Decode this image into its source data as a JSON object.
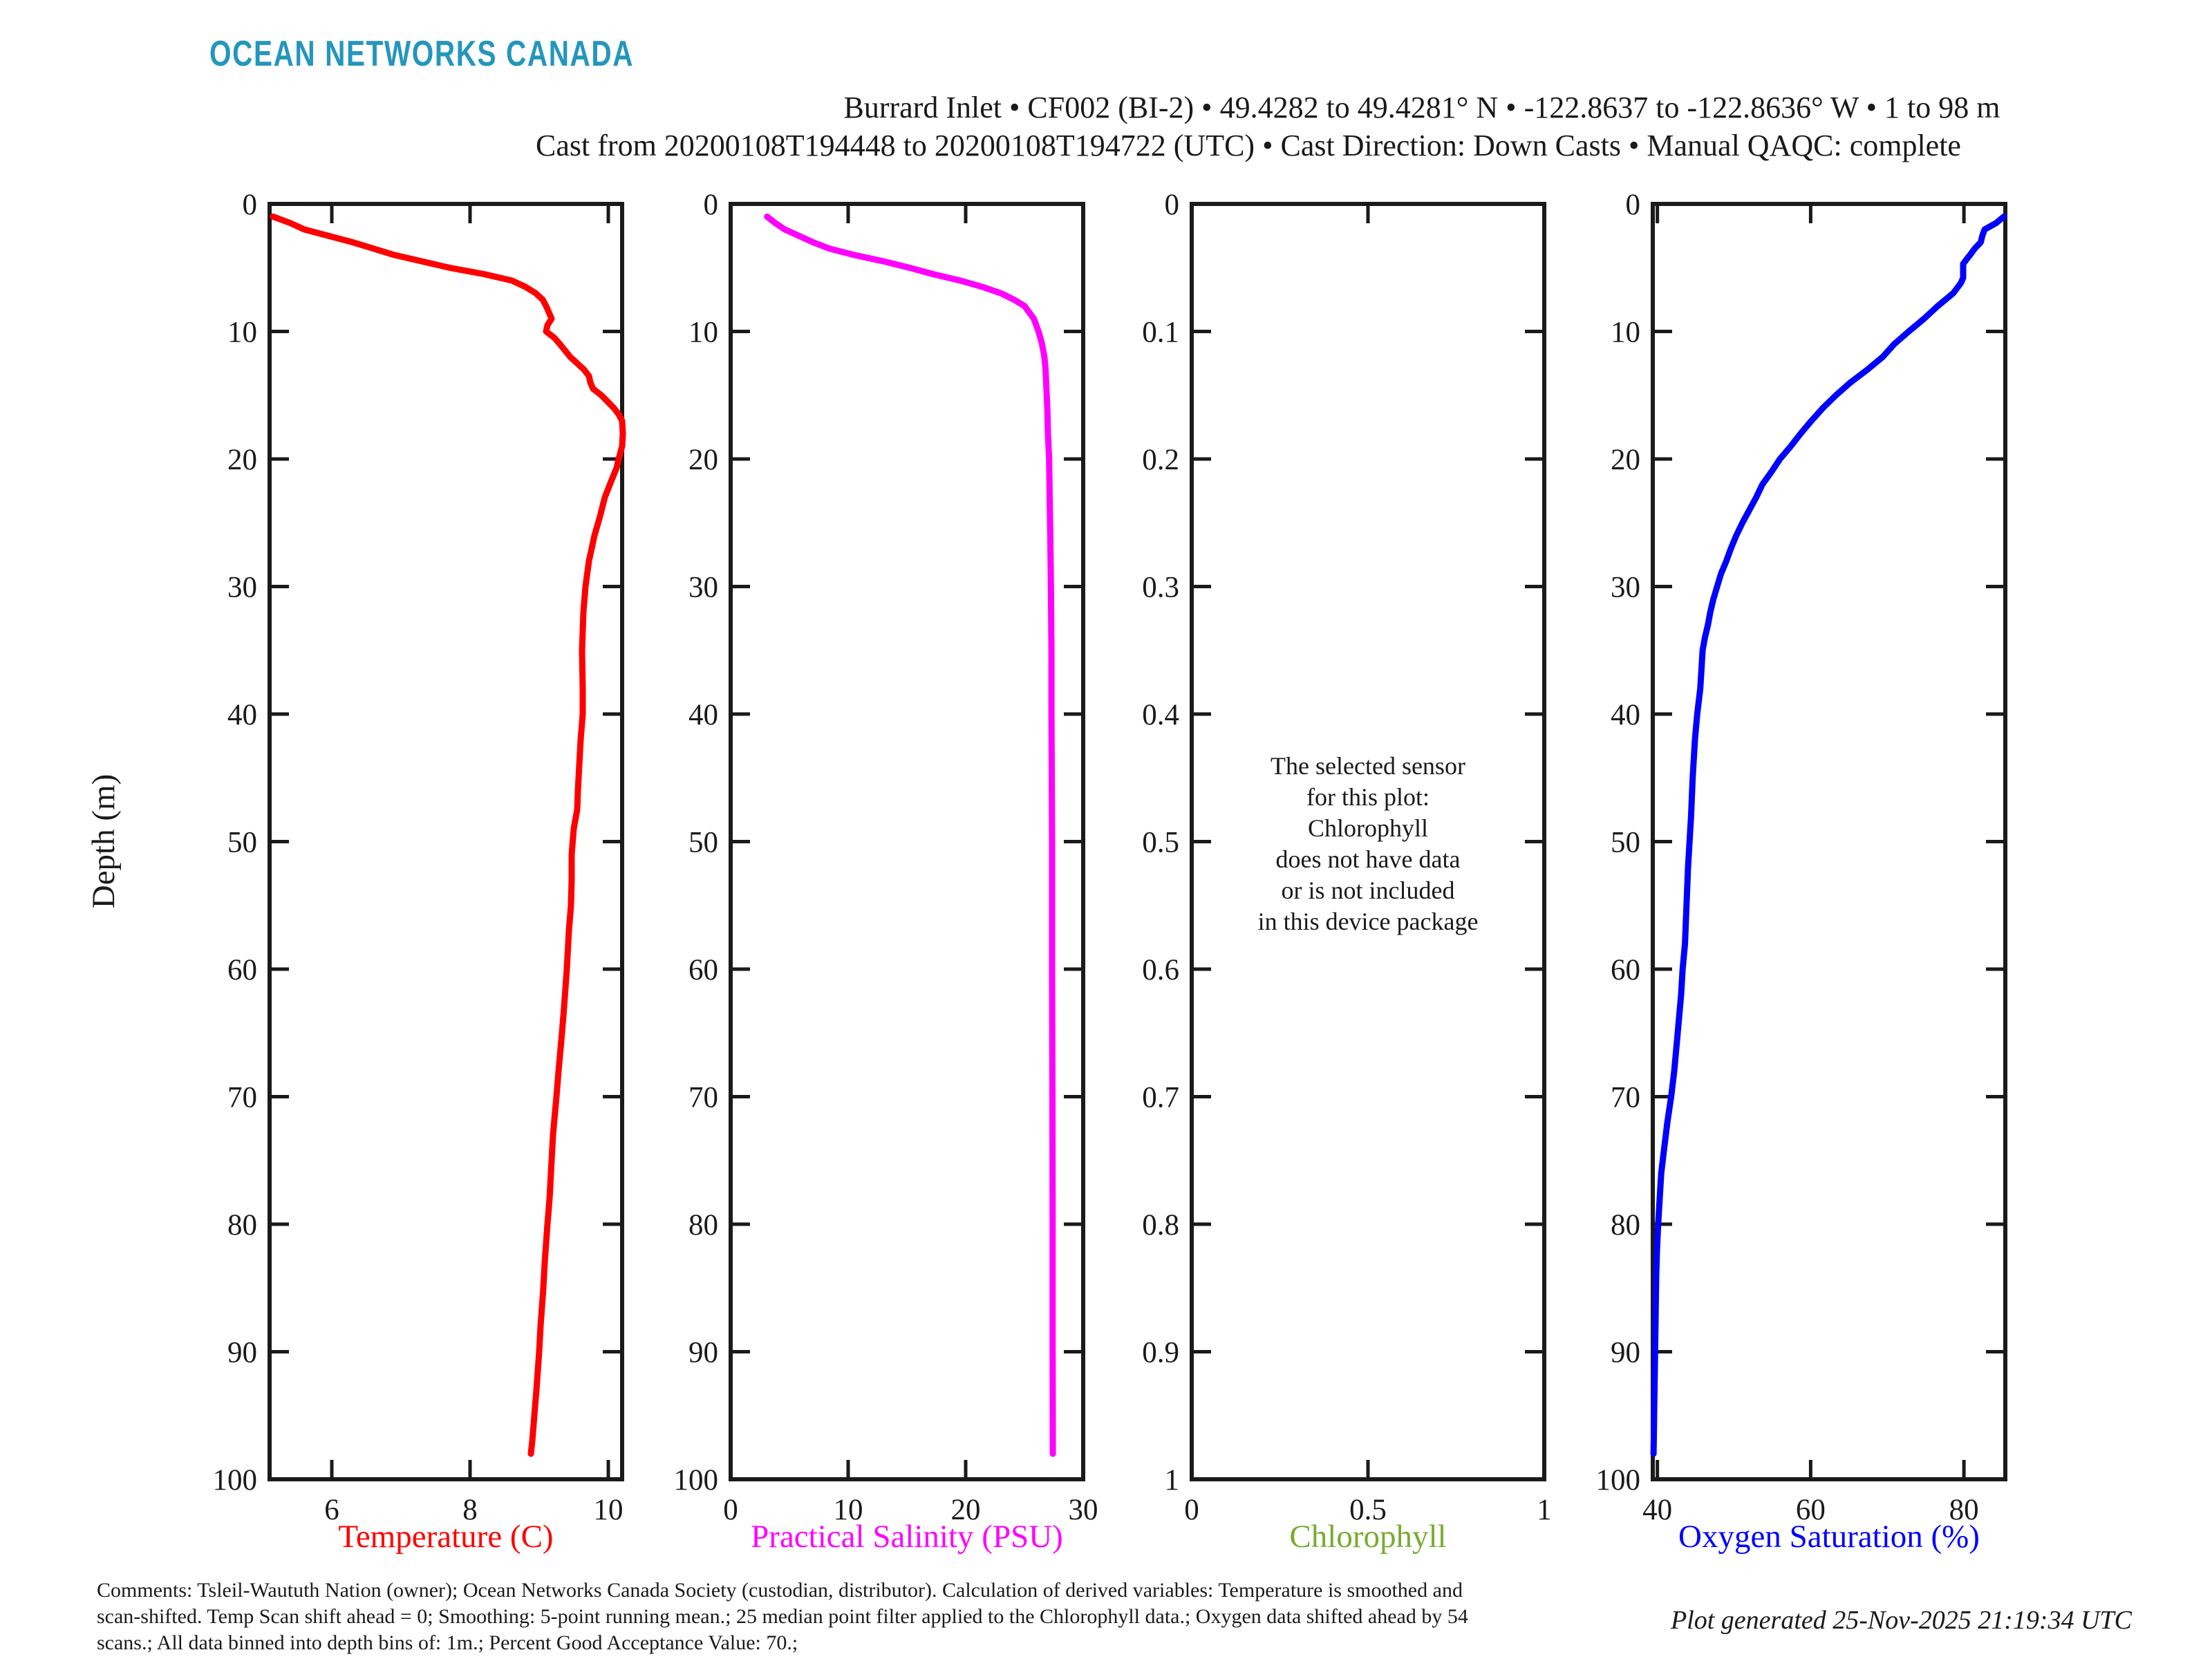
{
  "logo_text": "OCEAN NETWORKS CANADA",
  "title": {
    "line1": "Burrard Inlet • CF002 (BI-2) • 49.4282 to 49.4281° N • -122.8637 to -122.8636° W • 1 to 98 m",
    "line2": "Cast from 20200108T194448 to 20200108T194722 (UTC) • Cast Direction: Down Casts • Manual QAQC: complete"
  },
  "depth_axis_label": "Depth (m)",
  "footer": {
    "comments": [
      "Comments: Tsleil-Waututh Nation (owner); Ocean Networks Canada Society (custodian, distributor). Calculation of derived variables: Temperature is smoothed and",
      "scan-shifted. Temp Scan shift ahead = 0; Smoothing: 5-point running mean.; 25 median point filter applied to the Chlorophyll data.; Oxygen data shifted ahead by 54",
      "scans.; All data binned into depth bins of: 1m.; Percent Good Acceptance Value: 70.;"
    ],
    "generated": "Plot generated 25-Nov-2025 21:19:34 UTC"
  },
  "colors": {
    "logo": "#2496bd",
    "axis": "#1a1a1a",
    "temperature": "#ff0000",
    "salinity": "#ff00ff",
    "chlorophyll": "#77ac30",
    "oxygen": "#0000ff"
  },
  "chart_data": [
    {
      "name": "temperature",
      "type": "line",
      "xlabel": "Temperature (C)",
      "ylabel": "Depth (m)",
      "color_key": "temperature",
      "xlim": [
        5.1,
        10.2
      ],
      "xticks": [
        [
          6,
          "6"
        ],
        [
          8,
          "8"
        ],
        [
          10,
          "10"
        ]
      ],
      "ylim": [
        0,
        100
      ],
      "yticks": [
        [
          0,
          "0"
        ],
        [
          10,
          "10"
        ],
        [
          20,
          "20"
        ],
        [
          30,
          "30"
        ],
        [
          40,
          "40"
        ],
        [
          50,
          "50"
        ],
        [
          60,
          "60"
        ],
        [
          70,
          "70"
        ],
        [
          80,
          "80"
        ],
        [
          90,
          "90"
        ],
        [
          100,
          "100"
        ]
      ],
      "depth": [
        1,
        1.5,
        2,
        2.5,
        3,
        3.5,
        4,
        4.5,
        5,
        5.5,
        6,
        6.5,
        7,
        7.5,
        8,
        9,
        9.5,
        10,
        10.5,
        11,
        12,
        13,
        13.5,
        14,
        14.5,
        15,
        16,
        16.5,
        17,
        18,
        19,
        20,
        20.7,
        21.9,
        23,
        24.5,
        26,
        28,
        30,
        32,
        35,
        38,
        40,
        42,
        44,
        46,
        47.5,
        49,
        51,
        53,
        55,
        57,
        60,
        63,
        65,
        68,
        70,
        73,
        75,
        78,
        80,
        83,
        85,
        88,
        90,
        93,
        95,
        97,
        98
      ],
      "values": [
        5.15,
        5.4,
        5.6,
        5.95,
        6.3,
        6.6,
        6.9,
        7.3,
        7.7,
        8.2,
        8.6,
        8.8,
        8.95,
        9.05,
        9.1,
        9.18,
        9.12,
        9.1,
        9.22,
        9.3,
        9.45,
        9.65,
        9.72,
        9.74,
        9.78,
        9.9,
        10.08,
        10.15,
        10.2,
        10.21,
        10.2,
        10.15,
        10.12,
        10.03,
        9.95,
        9.88,
        9.8,
        9.72,
        9.67,
        9.64,
        9.62,
        9.63,
        9.63,
        9.6,
        9.58,
        9.56,
        9.55,
        9.5,
        9.47,
        9.47,
        9.46,
        9.43,
        9.4,
        9.36,
        9.33,
        9.28,
        9.25,
        9.2,
        9.18,
        9.15,
        9.12,
        9.08,
        9.06,
        9.02,
        9.0,
        8.96,
        8.93,
        8.9,
        8.88
      ]
    },
    {
      "name": "salinity",
      "type": "line",
      "xlabel": "Practical Salinity (PSU)",
      "ylabel": "Depth (m)",
      "color_key": "salinity",
      "xlim": [
        0,
        30
      ],
      "xticks": [
        [
          0,
          "0"
        ],
        [
          10,
          "10"
        ],
        [
          20,
          "20"
        ],
        [
          30,
          "30"
        ]
      ],
      "ylim": [
        0,
        100
      ],
      "yticks": [
        [
          0,
          "0"
        ],
        [
          10,
          "10"
        ],
        [
          20,
          "20"
        ],
        [
          30,
          "30"
        ],
        [
          40,
          "40"
        ],
        [
          50,
          "50"
        ],
        [
          60,
          "60"
        ],
        [
          70,
          "70"
        ],
        [
          80,
          "80"
        ],
        [
          90,
          "90"
        ],
        [
          100,
          "100"
        ]
      ],
      "depth": [
        1,
        1.5,
        2,
        2.5,
        3,
        3.5,
        4,
        4.5,
        5,
        5.5,
        6,
        6.5,
        7,
        7.5,
        8,
        8.5,
        9,
        9.5,
        10,
        11,
        12,
        13,
        14,
        15,
        16,
        18,
        20,
        23,
        26,
        30,
        35,
        40,
        50,
        60,
        70,
        80,
        90,
        98
      ],
      "values": [
        3.1,
        3.8,
        4.6,
        5.8,
        7.0,
        8.4,
        10.5,
        13.0,
        15.2,
        17.2,
        19.5,
        21.4,
        23.0,
        24.1,
        25.0,
        25.4,
        25.8,
        26.0,
        26.2,
        26.5,
        26.7,
        26.8,
        26.85,
        26.9,
        26.95,
        27.0,
        27.1,
        27.15,
        27.2,
        27.25,
        27.3,
        27.3,
        27.35,
        27.35,
        27.38,
        27.4,
        27.4,
        27.42
      ]
    },
    {
      "name": "chlorophyll",
      "type": "line",
      "xlabel": "Chlorophyll",
      "ylabel": "",
      "color_key": "chlorophyll",
      "xlim": [
        0,
        1
      ],
      "xticks": [
        [
          0,
          "0"
        ],
        [
          0.5,
          "0.5"
        ],
        [
          1,
          "1"
        ]
      ],
      "ylim": [
        0,
        1
      ],
      "yticks": [
        [
          0,
          "0"
        ],
        [
          0.1,
          "0.1"
        ],
        [
          0.2,
          "0.2"
        ],
        [
          0.3,
          "0.3"
        ],
        [
          0.4,
          "0.4"
        ],
        [
          0.5,
          "0.5"
        ],
        [
          0.6,
          "0.6"
        ],
        [
          0.7,
          "0.7"
        ],
        [
          0.8,
          "0.8"
        ],
        [
          0.9,
          "0.9"
        ],
        [
          1,
          "1"
        ]
      ],
      "depth": [],
      "values": [],
      "message": [
        "The selected sensor",
        "for this plot:",
        "Chlorophyll",
        "does not have data",
        "or is not included",
        "in this device package"
      ]
    },
    {
      "name": "oxygen",
      "type": "line",
      "xlabel": "Oxygen Saturation (%)",
      "ylabel": "Depth (m)",
      "color_key": "oxygen",
      "xlim": [
        39.4,
        85.4
      ],
      "xticks": [
        [
          40,
          "40"
        ],
        [
          60,
          "60"
        ],
        [
          80,
          "80"
        ]
      ],
      "ylim": [
        0,
        100
      ],
      "yticks": [
        [
          0,
          "0"
        ],
        [
          10,
          "10"
        ],
        [
          20,
          "20"
        ],
        [
          30,
          "30"
        ],
        [
          40,
          "40"
        ],
        [
          50,
          "50"
        ],
        [
          60,
          "60"
        ],
        [
          70,
          "70"
        ],
        [
          80,
          "80"
        ],
        [
          90,
          "90"
        ],
        [
          100,
          "100"
        ]
      ],
      "depth": [
        1,
        1.5,
        2,
        2.5,
        3,
        3.5,
        4,
        4.3,
        4.7,
        5.8,
        6.2,
        7,
        8,
        9,
        10,
        11,
        12,
        13,
        14,
        15,
        16,
        17,
        18,
        19,
        20,
        21,
        22,
        23,
        24,
        25,
        26,
        27,
        28,
        29,
        30,
        31,
        32,
        33,
        34,
        35,
        36,
        38,
        40,
        42,
        45,
        48,
        50,
        52,
        55,
        58,
        60,
        62,
        64,
        66,
        68,
        70,
        72,
        74,
        76,
        78,
        80,
        82,
        84,
        86,
        88,
        90,
        92,
        94,
        96,
        98
      ],
      "values": [
        85.2,
        84.2,
        82.7,
        82.4,
        82.2,
        81.4,
        80.8,
        80.4,
        79.9,
        79.9,
        79.6,
        78.6,
        76.6,
        74.8,
        72.8,
        70.9,
        69.4,
        67.4,
        65.2,
        63.3,
        61.6,
        60.1,
        58.7,
        57.4,
        56.0,
        54.9,
        53.7,
        52.9,
        52.0,
        51.1,
        50.3,
        49.6,
        49.0,
        48.3,
        47.8,
        47.3,
        46.9,
        46.6,
        46.2,
        45.9,
        45.8,
        45.6,
        45.2,
        44.9,
        44.6,
        44.4,
        44.2,
        44.0,
        43.8,
        43.6,
        43.3,
        43.1,
        42.8,
        42.5,
        42.2,
        41.8,
        41.3,
        40.9,
        40.5,
        40.3,
        40.1,
        39.95,
        39.85,
        39.8,
        39.75,
        39.7,
        39.65,
        39.6,
        39.55,
        39.5
      ]
    }
  ]
}
